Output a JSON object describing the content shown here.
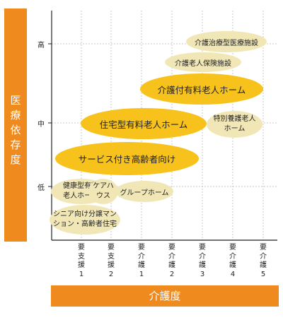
{
  "axes": {
    "y_title": "医\n療\n依\n存\n度",
    "x_title": "介護度",
    "y_ticks": [
      "高",
      "中",
      "低"
    ],
    "x_ticks": [
      "要\n支\n援\n1",
      "要\n支\n援\n2",
      "要\n介\n護\n1",
      "要\n介\n護\n2",
      "要\n介\n護\n3",
      "要\n介\n護\n4",
      "要\n介\n護\n5"
    ]
  },
  "facilities": {
    "ryoyo": "介護治療型医療施設",
    "hoken": "介護老人保険施設",
    "yuryo": "介護付有料老人ホーム",
    "tokuyo": "特別養護老人\nホーム",
    "jutaku": "住宅型有料老人ホーム",
    "sakoju": "サービス付き高齢者向け",
    "kenko": "健康型有料\n老人ホーム",
    "carehouse": "ケアハ\nウス",
    "group": "グループホーム",
    "senior": "シニア向け分譲マン\nション・高齢者住宅"
  },
  "colors": {
    "accent": "#ee8a1e",
    "primary_oval": "#f7c21c",
    "secondary_oval": "#f1e7b6"
  }
}
